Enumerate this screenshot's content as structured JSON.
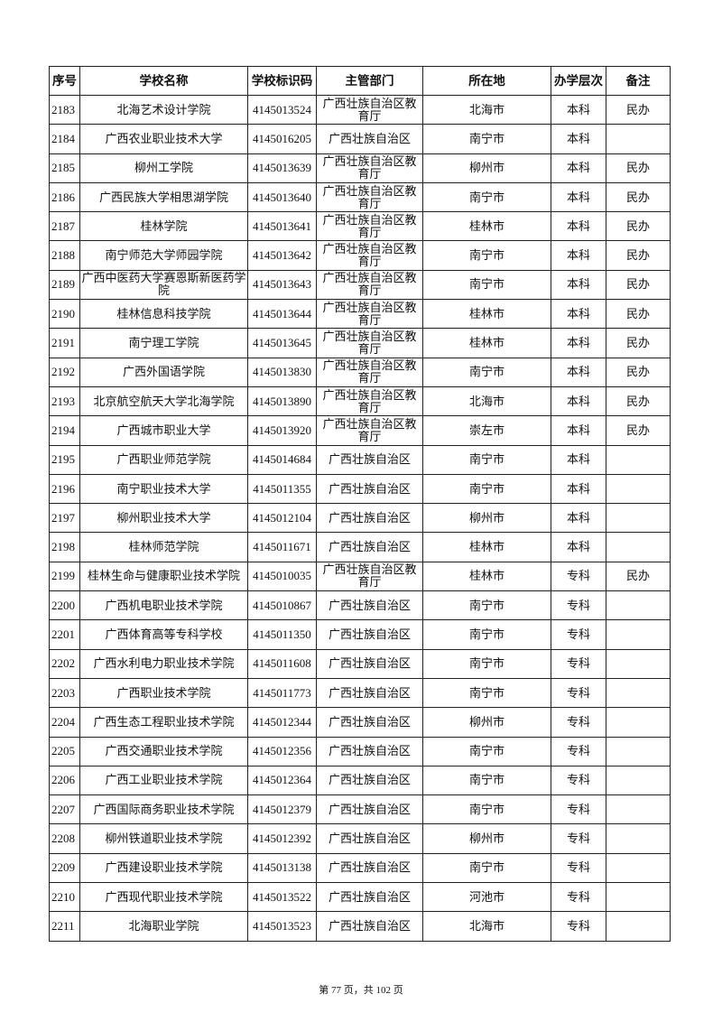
{
  "table": {
    "headers": [
      "序号",
      "学校名称",
      "学校标识码",
      "主管部门",
      "所在地",
      "办学层次",
      "备注"
    ],
    "rows": [
      [
        "2183",
        "北海艺术设计学院",
        "4145013524",
        "广西壮族自治区教育厅",
        "北海市",
        "本科",
        "民办"
      ],
      [
        "2184",
        "广西农业职业技术大学",
        "4145016205",
        "广西壮族自治区",
        "南宁市",
        "本科",
        ""
      ],
      [
        "2185",
        "柳州工学院",
        "4145013639",
        "广西壮族自治区教育厅",
        "柳州市",
        "本科",
        "民办"
      ],
      [
        "2186",
        "广西民族大学相思湖学院",
        "4145013640",
        "广西壮族自治区教育厅",
        "南宁市",
        "本科",
        "民办"
      ],
      [
        "2187",
        "桂林学院",
        "4145013641",
        "广西壮族自治区教育厅",
        "桂林市",
        "本科",
        "民办"
      ],
      [
        "2188",
        "南宁师范大学师园学院",
        "4145013642",
        "广西壮族自治区教育厅",
        "南宁市",
        "本科",
        "民办"
      ],
      [
        "2189",
        "广西中医药大学赛恩斯新医药学院",
        "4145013643",
        "广西壮族自治区教育厅",
        "南宁市",
        "本科",
        "民办"
      ],
      [
        "2190",
        "桂林信息科技学院",
        "4145013644",
        "广西壮族自治区教育厅",
        "桂林市",
        "本科",
        "民办"
      ],
      [
        "2191",
        "南宁理工学院",
        "4145013645",
        "广西壮族自治区教育厅",
        "桂林市",
        "本科",
        "民办"
      ],
      [
        "2192",
        "广西外国语学院",
        "4145013830",
        "广西壮族自治区教育厅",
        "南宁市",
        "本科",
        "民办"
      ],
      [
        "2193",
        "北京航空航天大学北海学院",
        "4145013890",
        "广西壮族自治区教育厅",
        "北海市",
        "本科",
        "民办"
      ],
      [
        "2194",
        "广西城市职业大学",
        "4145013920",
        "广西壮族自治区教育厅",
        "崇左市",
        "本科",
        "民办"
      ],
      [
        "2195",
        "广西职业师范学院",
        "4145014684",
        "广西壮族自治区",
        "南宁市",
        "本科",
        ""
      ],
      [
        "2196",
        "南宁职业技术大学",
        "4145011355",
        "广西壮族自治区",
        "南宁市",
        "本科",
        ""
      ],
      [
        "2197",
        "柳州职业技术大学",
        "4145012104",
        "广西壮族自治区",
        "柳州市",
        "本科",
        ""
      ],
      [
        "2198",
        "桂林师范学院",
        "4145011671",
        "广西壮族自治区",
        "桂林市",
        "本科",
        ""
      ],
      [
        "2199",
        "桂林生命与健康职业技术学院",
        "4145010035",
        "广西壮族自治区教育厅",
        "桂林市",
        "专科",
        "民办"
      ],
      [
        "2200",
        "广西机电职业技术学院",
        "4145010867",
        "广西壮族自治区",
        "南宁市",
        "专科",
        ""
      ],
      [
        "2201",
        "广西体育高等专科学校",
        "4145011350",
        "广西壮族自治区",
        "南宁市",
        "专科",
        ""
      ],
      [
        "2202",
        "广西水利电力职业技术学院",
        "4145011608",
        "广西壮族自治区",
        "南宁市",
        "专科",
        ""
      ],
      [
        "2203",
        "广西职业技术学院",
        "4145011773",
        "广西壮族自治区",
        "南宁市",
        "专科",
        ""
      ],
      [
        "2204",
        "广西生态工程职业技术学院",
        "4145012344",
        "广西壮族自治区",
        "柳州市",
        "专科",
        ""
      ],
      [
        "2205",
        "广西交通职业技术学院",
        "4145012356",
        "广西壮族自治区",
        "南宁市",
        "专科",
        ""
      ],
      [
        "2206",
        "广西工业职业技术学院",
        "4145012364",
        "广西壮族自治区",
        "南宁市",
        "专科",
        ""
      ],
      [
        "2207",
        "广西国际商务职业技术学院",
        "4145012379",
        "广西壮族自治区",
        "南宁市",
        "专科",
        ""
      ],
      [
        "2208",
        "柳州铁道职业技术学院",
        "4145012392",
        "广西壮族自治区",
        "柳州市",
        "专科",
        ""
      ],
      [
        "2209",
        "广西建设职业技术学院",
        "4145013138",
        "广西壮族自治区",
        "南宁市",
        "专科",
        ""
      ],
      [
        "2210",
        "广西现代职业技术学院",
        "4145013522",
        "广西壮族自治区",
        "河池市",
        "专科",
        ""
      ],
      [
        "2211",
        "北海职业学院",
        "4145013523",
        "广西壮族自治区",
        "北海市",
        "专科",
        ""
      ]
    ]
  },
  "footer": {
    "page_text": "第 77 页，共 102 页"
  }
}
